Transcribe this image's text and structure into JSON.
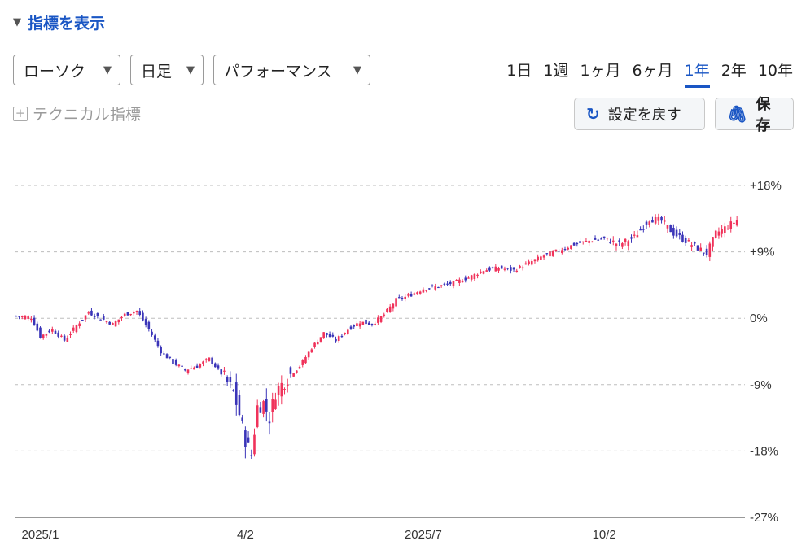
{
  "indicator_toggle": {
    "label": "指標を表示"
  },
  "selects": [
    {
      "label": "ローソク"
    },
    {
      "label": "日足"
    },
    {
      "label": "パフォーマンス"
    }
  ],
  "periods": [
    "1日",
    "1週",
    "1ヶ月",
    "6ヶ月",
    "1年",
    "2年",
    "10年"
  ],
  "active_period": "1年",
  "technical": {
    "label": "テクニカル指標"
  },
  "buttons": {
    "reset": "設定を戻す",
    "save": "保存"
  },
  "colors": {
    "up": "#f0325a",
    "down": "#3a34b8",
    "accent": "#1a56c4"
  },
  "chart_data": {
    "type": "candlestick",
    "y_unit": "%",
    "ylim": [
      -27,
      18
    ],
    "yticks": [
      "+18%",
      "+9%",
      "0%",
      "-9%",
      "-18%",
      "-27%"
    ],
    "ytick_values": [
      18,
      9,
      0,
      -9,
      -18,
      -27
    ],
    "xticks": [
      "2025/1",
      "4/2",
      "2025/7",
      "10/2"
    ],
    "xtick_index": [
      8,
      76,
      135,
      195
    ],
    "grid": true,
    "series_points": [
      [
        0,
        0.3
      ],
      [
        5,
        0.1
      ],
      [
        8,
        -2.5
      ],
      [
        12,
        -1.5
      ],
      [
        16,
        -3.0
      ],
      [
        20,
        -1.0
      ],
      [
        24,
        0.8
      ],
      [
        28,
        0.0
      ],
      [
        32,
        -0.8
      ],
      [
        36,
        0.5
      ],
      [
        40,
        1.0
      ],
      [
        44,
        -1.5
      ],
      [
        48,
        -4.5
      ],
      [
        52,
        -6.0
      ],
      [
        56,
        -7.0
      ],
      [
        60,
        -6.5
      ],
      [
        64,
        -5.5
      ],
      [
        68,
        -7.5
      ],
      [
        72,
        -10.0
      ],
      [
        74,
        -13.0
      ],
      [
        76,
        -16.5
      ],
      [
        78,
        -18.5
      ],
      [
        80,
        -12.0
      ],
      [
        82,
        -11.5
      ],
      [
        84,
        -13.5
      ],
      [
        86,
        -10.0
      ],
      [
        90,
        -8.0
      ],
      [
        94,
        -6.5
      ],
      [
        98,
        -4.0
      ],
      [
        102,
        -2.0
      ],
      [
        106,
        -3.0
      ],
      [
        110,
        -1.5
      ],
      [
        114,
        -0.5
      ],
      [
        118,
        -0.8
      ],
      [
        122,
        0.5
      ],
      [
        126,
        2.5
      ],
      [
        130,
        3.0
      ],
      [
        135,
        4.0
      ],
      [
        140,
        4.3
      ],
      [
        145,
        4.8
      ],
      [
        150,
        5.5
      ],
      [
        155,
        6.5
      ],
      [
        160,
        6.8
      ],
      [
        165,
        6.5
      ],
      [
        170,
        7.5
      ],
      [
        175,
        8.5
      ],
      [
        180,
        9.2
      ],
      [
        185,
        10.0
      ],
      [
        190,
        10.5
      ],
      [
        195,
        10.8
      ],
      [
        200,
        10.0
      ],
      [
        205,
        11.0
      ],
      [
        210,
        13.5
      ],
      [
        214,
        13.2
      ],
      [
        218,
        11.5
      ],
      [
        222,
        10.5
      ],
      [
        226,
        9.5
      ],
      [
        229,
        8.8
      ],
      [
        232,
        11.5
      ],
      [
        236,
        12.5
      ],
      [
        239,
        13.3
      ]
    ]
  }
}
